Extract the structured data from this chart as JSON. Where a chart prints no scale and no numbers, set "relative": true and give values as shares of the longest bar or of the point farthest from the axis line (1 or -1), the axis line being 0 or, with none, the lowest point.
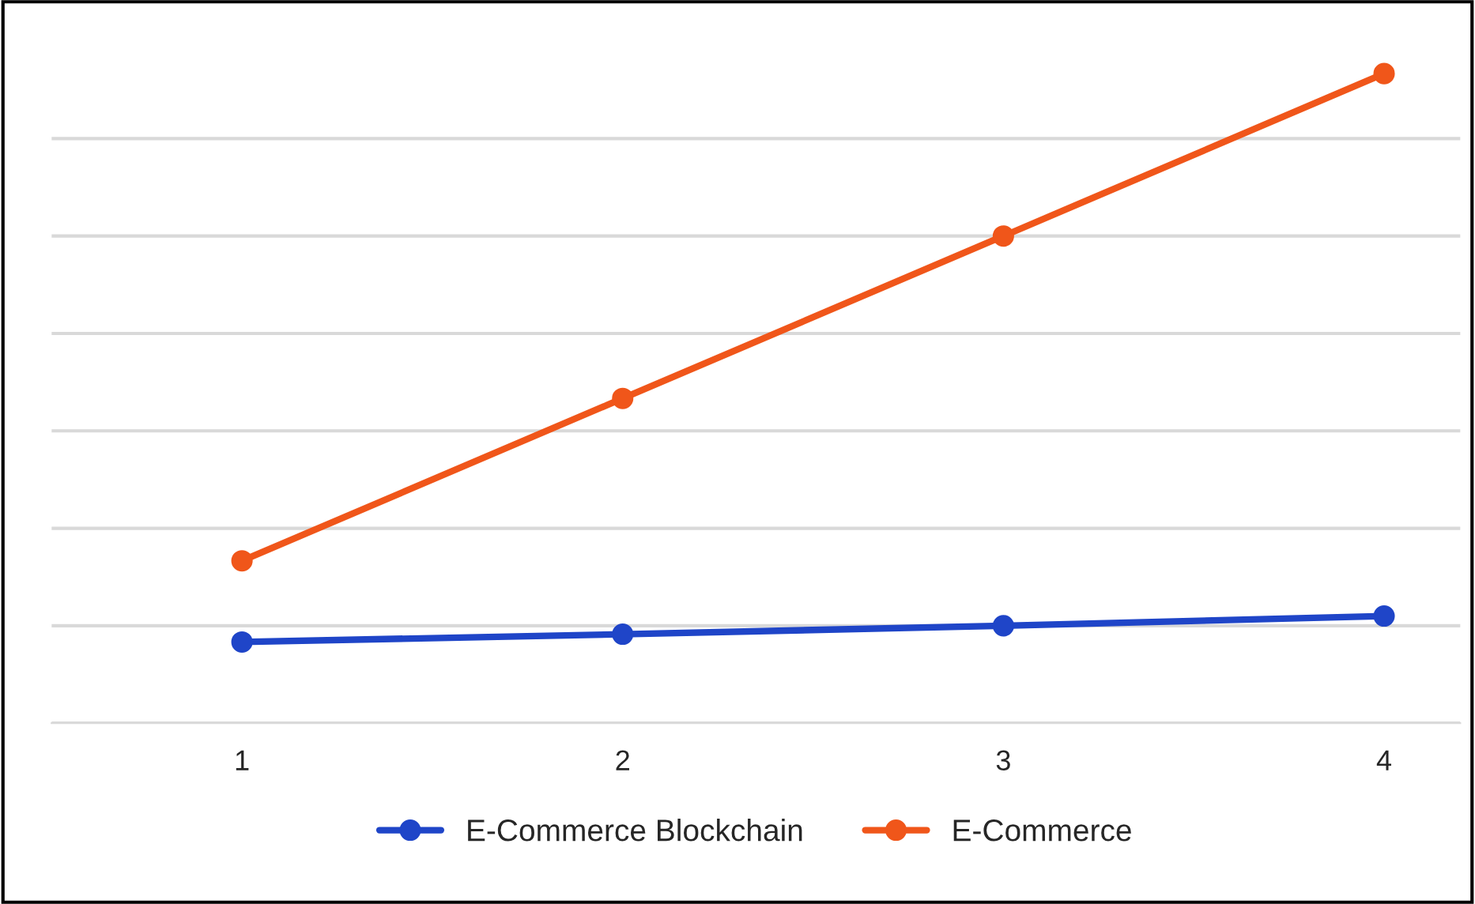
{
  "chart_data": {
    "type": "line",
    "relative": true,
    "categories": [
      "1",
      "2",
      "3",
      "4"
    ],
    "series": [
      {
        "name": "E-Commerce Blockchain",
        "color": "#1f45c8",
        "values": [
          0.125,
          0.137,
          0.15,
          0.165
        ]
      },
      {
        "name": "E-Commerce",
        "color": "#f0561a",
        "values": [
          0.25,
          0.5,
          0.75,
          1
        ]
      }
    ],
    "grid": "y",
    "legend": "bottom",
    "marker": "circle",
    "line_style": "solid"
  }
}
